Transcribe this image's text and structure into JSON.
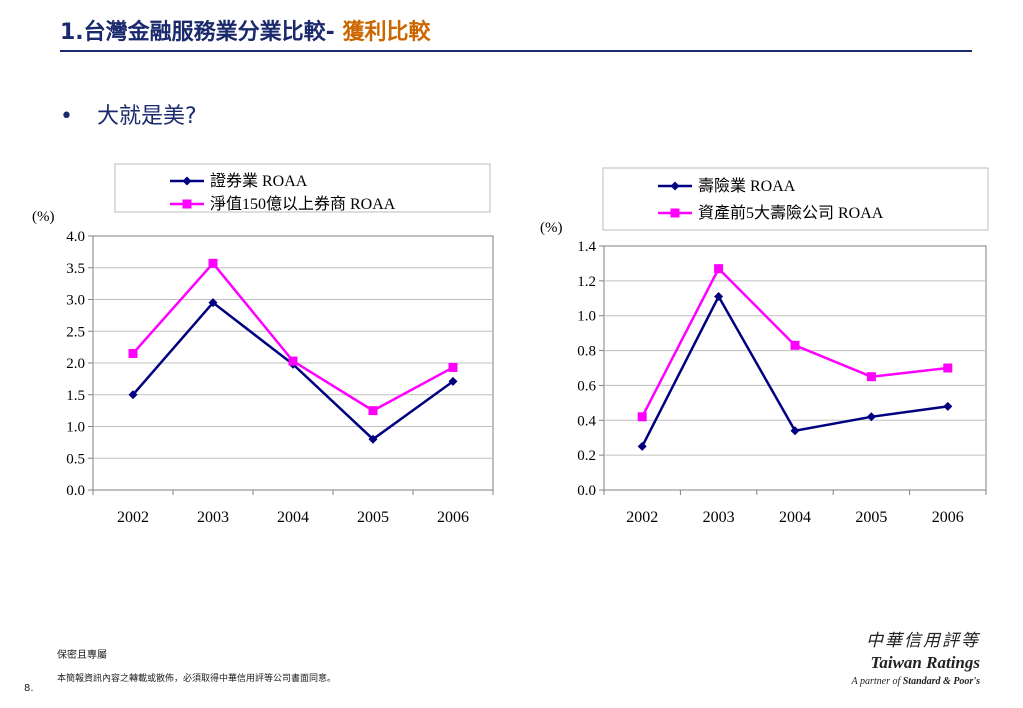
{
  "header": {
    "title_prefix": "1.台灣金融服務業分業比較-",
    "title_accent": "獲利比較"
  },
  "bullet": {
    "symbol": "•",
    "text": "大就是美?"
  },
  "colors": {
    "navy": "#000080",
    "magenta": "#ff00ff",
    "title": "#1a2a6c",
    "accent": "#cc6600"
  },
  "chart_data": [
    {
      "type": "line",
      "categories": [
        "2002",
        "2003",
        "2004",
        "2005",
        "2006"
      ],
      "ylabel": "(%)",
      "ylim": [
        0,
        4.0
      ],
      "ystep": 0.5,
      "ydecimals": 1,
      "yticks": [
        "0.0",
        "0.5",
        "1.0",
        "1.5",
        "2.0",
        "2.5",
        "3.0",
        "3.5",
        "4.0"
      ],
      "grid": true,
      "legend_position": "top",
      "series": [
        {
          "name": "證券業 ROAA",
          "color": "#000080",
          "marker": "diamond",
          "values": [
            1.5,
            2.95,
            1.98,
            0.8,
            1.71
          ]
        },
        {
          "name": "淨值150億以上券商 ROAA",
          "color": "#ff00ff",
          "marker": "square",
          "values": [
            2.15,
            3.57,
            2.03,
            1.25,
            1.93
          ]
        }
      ]
    },
    {
      "type": "line",
      "categories": [
        "2002",
        "2003",
        "2004",
        "2005",
        "2006"
      ],
      "ylabel": "(%)",
      "ylim": [
        0,
        1.4
      ],
      "ystep": 0.2,
      "ydecimals": 1,
      "yticks": [
        "0.0",
        "0.2",
        "0.4",
        "0.6",
        "0.8",
        "1.0",
        "1.2",
        "1.4"
      ],
      "grid": true,
      "legend_position": "top",
      "series": [
        {
          "name": "壽險業 ROAA",
          "color": "#000080",
          "marker": "diamond",
          "values": [
            0.25,
            1.11,
            0.34,
            0.42,
            0.48
          ]
        },
        {
          "name": "資產前5大壽險公司 ROAA",
          "color": "#ff00ff",
          "marker": "square",
          "values": [
            0.42,
            1.27,
            0.83,
            0.65,
            0.7
          ]
        }
      ]
    }
  ],
  "footer": {
    "confidential": "保密且專屬",
    "note": "本簡報資訊內容之轉載或散佈，必須取得中華信用評等公司書面同意。",
    "page_number": "8."
  },
  "logo": {
    "chinese": "中華信用評等",
    "english": "Taiwan Ratings",
    "partner_prefix": "A partner of",
    "partner_name": "Standard & Poor's"
  }
}
